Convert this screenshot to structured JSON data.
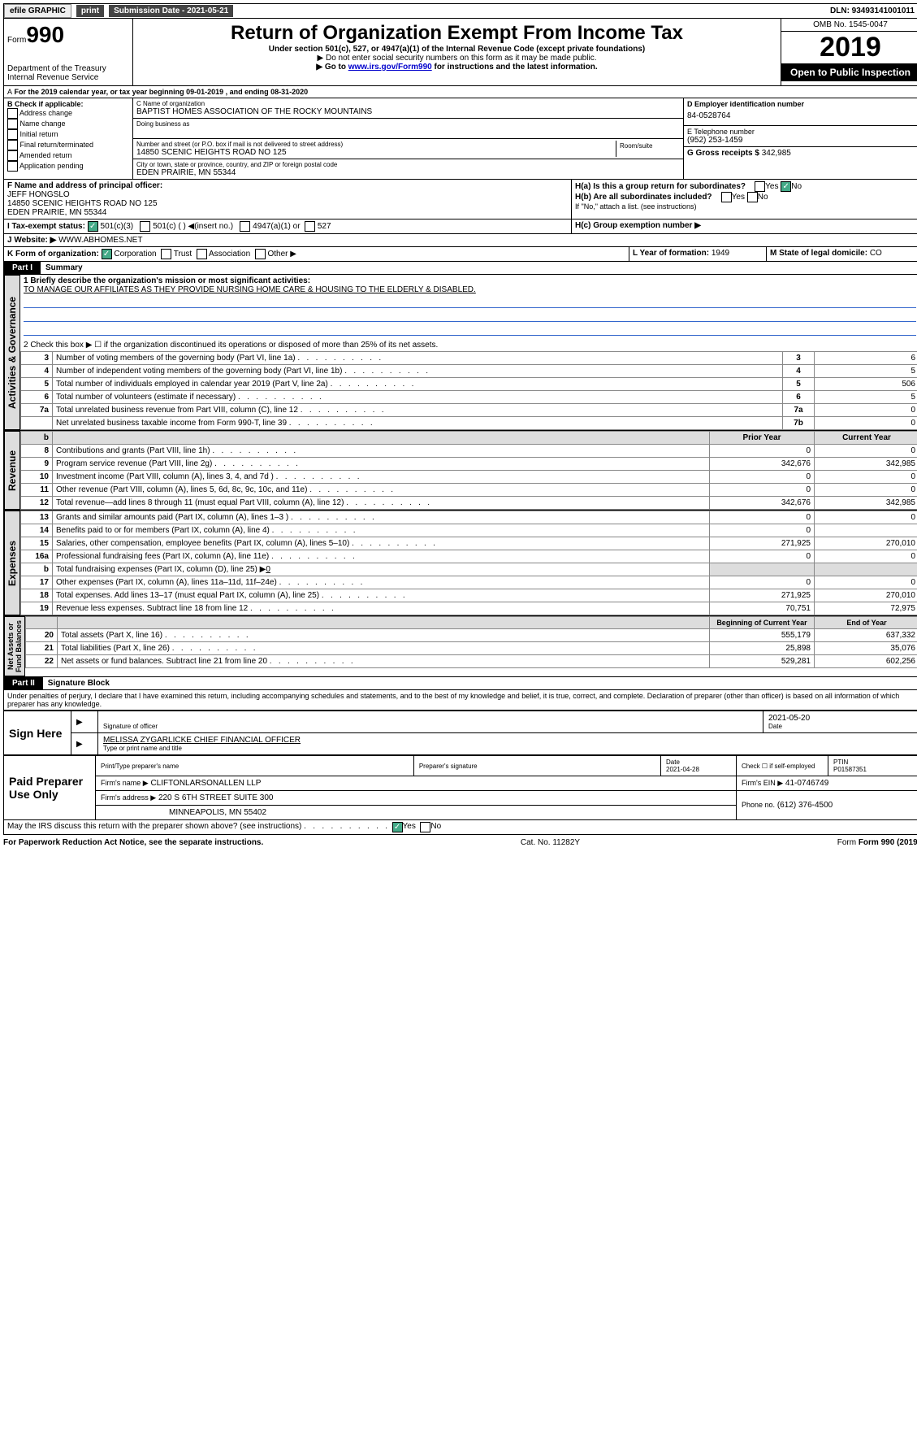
{
  "topbar": {
    "efile": "efile GRAPHIC",
    "print": "print",
    "submission": "Submission Date - 2021-05-21",
    "dln": "DLN: 93493141001011"
  },
  "header": {
    "form_label": "Form",
    "form_no": "990",
    "dept": "Department of the Treasury\nInternal Revenue Service",
    "title": "Return of Organization Exempt From Income Tax",
    "subtitle": "Under section 501(c), 527, or 4947(a)(1) of the Internal Revenue Code (except private foundations)",
    "note1": "▶ Do not enter social security numbers on this form as it may be made public.",
    "note2_pre": "▶ Go to ",
    "note2_link": "www.irs.gov/Form990",
    "note2_post": " for instructions and the latest information.",
    "omb": "OMB No. 1545-0047",
    "year": "2019",
    "open": "Open to Public Inspection"
  },
  "period": {
    "line": "For the 2019 calendar year, or tax year beginning 09-01-2019   , and ending 08-31-2020"
  },
  "boxB": {
    "label": "B Check if applicable:",
    "items": [
      "Address change",
      "Name change",
      "Initial return",
      "Final return/terminated",
      "Amended return",
      "Application pending"
    ]
  },
  "boxC": {
    "name_label": "C Name of organization",
    "name": "BAPTIST HOMES ASSOCIATION OF THE ROCKY MOUNTAINS",
    "dba_label": "Doing business as",
    "addr_label": "Number and street (or P.O. box if mail is not delivered to street address)",
    "room_label": "Room/suite",
    "addr": "14850 SCENIC HEIGHTS ROAD NO 125",
    "city_label": "City or town, state or province, country, and ZIP or foreign postal code",
    "city": "EDEN PRAIRIE, MN  55344"
  },
  "boxD": {
    "label": "D Employer identification number",
    "value": "84-0528764"
  },
  "boxE": {
    "label": "E Telephone number",
    "value": "(952) 253-1459"
  },
  "boxG": {
    "label": "G Gross receipts $",
    "value": "342,985"
  },
  "boxF": {
    "label": "F Name and address of principal officer:",
    "name": "JEFF HONGSLO",
    "addr1": "14850 SCENIC HEIGHTS ROAD NO 125",
    "addr2": "EDEN PRAIRIE, MN  55344"
  },
  "boxH": {
    "a": "H(a)  Is this a group return for subordinates?",
    "b": "H(b)  Are all subordinates included?",
    "b_note": "If \"No,\" attach a list. (see instructions)",
    "c": "H(c)  Group exemption number ▶",
    "yes": "Yes",
    "no": "No"
  },
  "boxI": {
    "label": "I  Tax-exempt status:",
    "o1": "501(c)(3)",
    "o2": "501(c) (  ) ◀(insert no.)",
    "o3": "4947(a)(1) or",
    "o4": "527"
  },
  "boxJ": {
    "label": "J   Website: ▶",
    "value": "WWW.ABHOMES.NET"
  },
  "boxK": {
    "label": "K Form of organization:",
    "o1": "Corporation",
    "o2": "Trust",
    "o3": "Association",
    "o4": "Other ▶"
  },
  "boxL": {
    "label": "L Year of formation:",
    "value": "1949"
  },
  "boxM": {
    "label": "M State of legal domicile:",
    "value": "CO"
  },
  "part1": {
    "tag": "Part I",
    "title": "Summary"
  },
  "vtabs": {
    "ag": "Activities & Governance",
    "rev": "Revenue",
    "exp": "Expenses",
    "na": "Net Assets or\nFund Balances"
  },
  "line1": {
    "label": "1  Briefly describe the organization's mission or most significant activities:",
    "text": "TO MANAGE OUR AFFILIATES AS THEY PROVIDE NURSING HOME CARE & HOUSING TO THE ELDERLY & DISABLED."
  },
  "line2": "2   Check this box ▶ ☐ if the organization discontinued its operations or disposed of more than 25% of its net assets.",
  "govlines": [
    {
      "n": "3",
      "t": "Number of voting members of the governing body (Part VI, line 1a)",
      "k": "3",
      "v": "6"
    },
    {
      "n": "4",
      "t": "Number of independent voting members of the governing body (Part VI, line 1b)",
      "k": "4",
      "v": "5"
    },
    {
      "n": "5",
      "t": "Total number of individuals employed in calendar year 2019 (Part V, line 2a)",
      "k": "5",
      "v": "506"
    },
    {
      "n": "6",
      "t": "Total number of volunteers (estimate if necessary)",
      "k": "6",
      "v": "5"
    },
    {
      "n": "7a",
      "t": "Total unrelated business revenue from Part VIII, column (C), line 12",
      "k": "7a",
      "v": "0"
    },
    {
      "n": "",
      "t": "Net unrelated business taxable income from Form 990-T, line 39",
      "k": "7b",
      "v": "0"
    }
  ],
  "tableHead": {
    "b": "b",
    "prior": "Prior Year",
    "current": "Current Year"
  },
  "revlines": [
    {
      "n": "8",
      "t": "Contributions and grants (Part VIII, line 1h)",
      "p": "0",
      "c": "0"
    },
    {
      "n": "9",
      "t": "Program service revenue (Part VIII, line 2g)",
      "p": "342,676",
      "c": "342,985"
    },
    {
      "n": "10",
      "t": "Investment income (Part VIII, column (A), lines 3, 4, and 7d )",
      "p": "0",
      "c": "0"
    },
    {
      "n": "11",
      "t": "Other revenue (Part VIII, column (A), lines 5, 6d, 8c, 9c, 10c, and 11e)",
      "p": "0",
      "c": "0"
    },
    {
      "n": "12",
      "t": "Total revenue—add lines 8 through 11 (must equal Part VIII, column (A), line 12)",
      "p": "342,676",
      "c": "342,985"
    }
  ],
  "explines": [
    {
      "n": "13",
      "t": "Grants and similar amounts paid (Part IX, column (A), lines 1–3 )",
      "p": "0",
      "c": "0"
    },
    {
      "n": "14",
      "t": "Benefits paid to or for members (Part IX, column (A), line 4)",
      "p": "0",
      "c": ""
    },
    {
      "n": "15",
      "t": "Salaries, other compensation, employee benefits (Part IX, column (A), lines 5–10)",
      "p": "271,925",
      "c": "270,010"
    },
    {
      "n": "16a",
      "t": "Professional fundraising fees (Part IX, column (A), line 11e)",
      "p": "0",
      "c": "0"
    }
  ],
  "line16b": {
    "n": "b",
    "t": "Total fundraising expenses (Part IX, column (D), line 25) ▶",
    "v": "0"
  },
  "explines2": [
    {
      "n": "17",
      "t": "Other expenses (Part IX, column (A), lines 11a–11d, 11f–24e)",
      "p": "0",
      "c": "0"
    },
    {
      "n": "18",
      "t": "Total expenses. Add lines 13–17 (must equal Part IX, column (A), line 25)",
      "p": "271,925",
      "c": "270,010"
    },
    {
      "n": "19",
      "t": "Revenue less expenses. Subtract line 18 from line 12",
      "p": "70,751",
      "c": "72,975"
    }
  ],
  "naHead": {
    "prior": "Beginning of Current Year",
    "current": "End of Year"
  },
  "nalines": [
    {
      "n": "20",
      "t": "Total assets (Part X, line 16)",
      "p": "555,179",
      "c": "637,332"
    },
    {
      "n": "21",
      "t": "Total liabilities (Part X, line 26)",
      "p": "25,898",
      "c": "35,076"
    },
    {
      "n": "22",
      "t": "Net assets or fund balances. Subtract line 21 from line 20",
      "p": "529,281",
      "c": "602,256"
    }
  ],
  "part2": {
    "tag": "Part II",
    "title": "Signature Block"
  },
  "perjury": "Under penalties of perjury, I declare that I have examined this return, including accompanying schedules and statements, and to the best of my knowledge and belief, it is true, correct, and complete. Declaration of preparer (other than officer) is based on all information of which preparer has any knowledge.",
  "sign": {
    "here": "Sign Here",
    "sig_label": "Signature of officer",
    "date": "2021-05-20",
    "date_label": "Date",
    "name": "MELISSA ZYGARLICKE CHIEF FINANCIAL OFFICER",
    "name_label": "Type or print name and title"
  },
  "paid": {
    "label": "Paid Preparer Use Only",
    "h1": "Print/Type preparer's name",
    "h2": "Preparer's signature",
    "h3": "Date",
    "h4": "Check ☐ if self-employed",
    "h5": "PTIN",
    "date": "2021-04-28",
    "ptin": "P01587351",
    "firm_label": "Firm's name    ▶",
    "firm": "CLIFTONLARSONALLEN LLP",
    "ein_label": "Firm's EIN ▶",
    "ein": "41-0746749",
    "addr_label": "Firm's address ▶",
    "addr": "220 S 6TH STREET SUITE 300",
    "addr2": "MINNEAPOLIS, MN  55402",
    "phone_label": "Phone no.",
    "phone": "(612) 376-4500"
  },
  "discuss": {
    "t": "May the IRS discuss this return with the preparer shown above? (see instructions)",
    "yes": "Yes",
    "no": "No"
  },
  "footer": {
    "pra": "For Paperwork Reduction Act Notice, see the separate instructions.",
    "cat": "Cat. No. 11282Y",
    "form": "Form 990 (2019)"
  }
}
